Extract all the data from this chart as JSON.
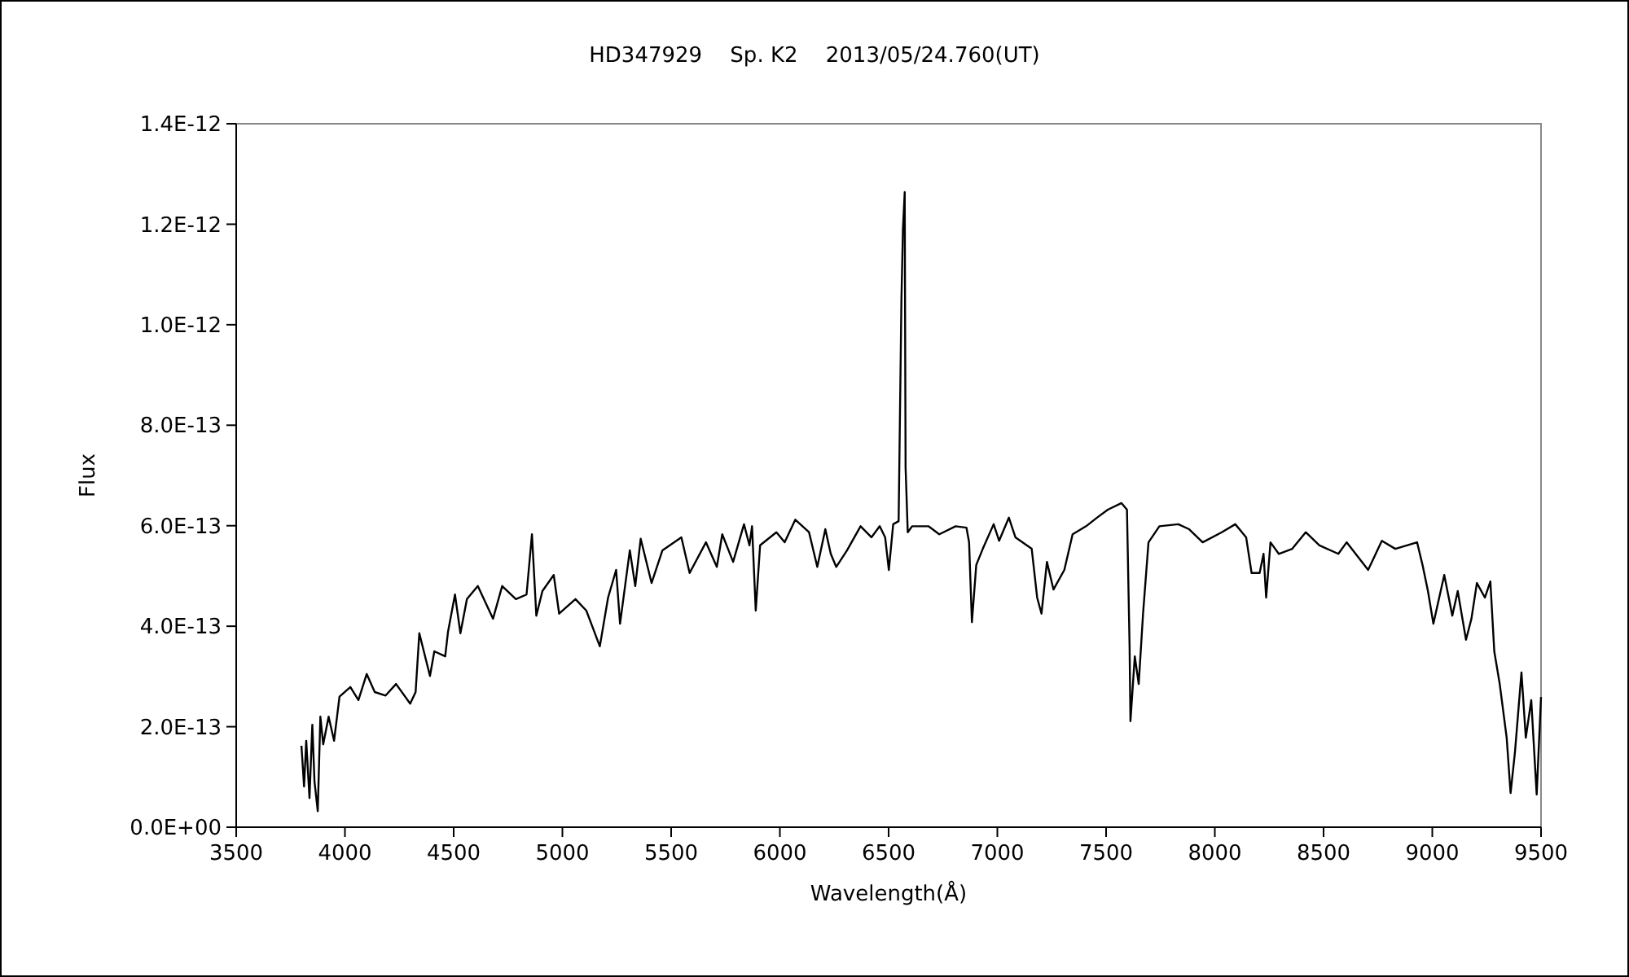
{
  "chart_data": {
    "type": "line",
    "title": "HD347929　 Sp. K2　 2013/05/24.760(UT)",
    "xlabel": "Wavelength(Å)",
    "ylabel": "Flux",
    "x": [
      3800,
      3812,
      3822,
      3837,
      3850,
      3860,
      3875,
      3887,
      3900,
      3925,
      3950,
      3975,
      4025,
      4062,
      4100,
      4137,
      4187,
      4235,
      4300,
      4325,
      4342,
      4391,
      4411,
      4461,
      4474,
      4506,
      4531,
      4561,
      4611,
      4681,
      4723,
      4786,
      4835,
      4860,
      4880,
      4908,
      4960,
      4985,
      5060,
      5110,
      5172,
      5210,
      5247,
      5265,
      5310,
      5335,
      5360,
      5410,
      5460,
      5547,
      5585,
      5660,
      5710,
      5735,
      5785,
      5835,
      5860,
      5872,
      5889,
      5909,
      5984,
      6022,
      6071,
      6134,
      6172,
      6209,
      6234,
      6259,
      6309,
      6371,
      6421,
      6459,
      6484,
      6501,
      6521,
      6546,
      6559,
      6566,
      6574,
      6578,
      6588,
      6608,
      6683,
      6733,
      6808,
      6858,
      6870,
      6883,
      6903,
      6933,
      6983,
      7008,
      7053,
      7083,
      7158,
      7183,
      7203,
      7228,
      7258,
      7308,
      7346,
      7408,
      7458,
      7508,
      7571,
      7596,
      7608,
      7612,
      7632,
      7650,
      7670,
      7695,
      7745,
      7832,
      7882,
      7944,
      8032,
      8094,
      8144,
      8169,
      8206,
      8224,
      8236,
      8256,
      8294,
      8356,
      8418,
      8481,
      8568,
      8606,
      8705,
      8768,
      8830,
      8930,
      8955,
      8980,
      9005,
      9055,
      9092,
      9117,
      9155,
      9180,
      9205,
      9242,
      9267,
      9285,
      9310,
      9342,
      9360,
      9380,
      9410,
      9430,
      9455,
      9480,
      9500
    ],
    "series": [
      {
        "color": "#000000",
        "values": [
          1.62e-13,
          8.1e-14,
          1.72e-13,
          5.8e-14,
          2.04e-13,
          9.1e-14,
          3.2e-14,
          2.2e-13,
          1.65e-13,
          2.2e-13,
          1.72e-13,
          2.6e-13,
          2.79e-13,
          2.53e-13,
          3.05e-13,
          2.69e-13,
          2.62e-13,
          2.85e-13,
          2.46e-13,
          2.69e-13,
          3.86e-13,
          3.01e-13,
          3.5e-13,
          3.4e-13,
          3.89e-13,
          4.63e-13,
          3.86e-13,
          4.54e-13,
          4.8e-13,
          4.15e-13,
          4.8e-13,
          4.54e-13,
          4.63e-13,
          5.83e-13,
          4.21e-13,
          4.7e-13,
          5.02e-13,
          4.25e-13,
          4.54e-13,
          4.31e-13,
          3.6e-13,
          4.57e-13,
          5.12e-13,
          4.05e-13,
          5.51e-13,
          4.8e-13,
          5.74e-13,
          4.86e-13,
          5.51e-13,
          5.77e-13,
          5.06e-13,
          5.67e-13,
          5.18e-13,
          5.83e-13,
          5.28e-13,
          6.03e-13,
          5.61e-13,
          5.99e-13,
          4.31e-13,
          5.61e-13,
          5.87e-13,
          5.67e-13,
          6.12e-13,
          5.87e-13,
          5.18e-13,
          5.93e-13,
          5.44e-13,
          5.18e-13,
          5.51e-13,
          5.99e-13,
          5.77e-13,
          5.99e-13,
          5.77e-13,
          5.12e-13,
          6.03e-13,
          6.09e-13,
          1.053e-12,
          1.192e-12,
          1.264e-12,
          7.16e-13,
          5.87e-13,
          5.99e-13,
          5.99e-13,
          5.83e-13,
          5.99e-13,
          5.96e-13,
          5.67e-13,
          4.08e-13,
          5.22e-13,
          5.54e-13,
          6.03e-13,
          5.7e-13,
          6.16e-13,
          5.77e-13,
          5.54e-13,
          4.57e-13,
          4.25e-13,
          5.28e-13,
          4.73e-13,
          5.12e-13,
          5.83e-13,
          5.99e-13,
          6.16e-13,
          6.32e-13,
          6.45e-13,
          6.32e-13,
          3.6e-13,
          2.11e-13,
          3.4e-13,
          2.85e-13,
          4.25e-13,
          5.67e-13,
          5.99e-13,
          6.03e-13,
          5.93e-13,
          5.67e-13,
          5.87e-13,
          6.03e-13,
          5.77e-13,
          5.06e-13,
          5.06e-13,
          5.44e-13,
          4.57e-13,
          5.67e-13,
          5.44e-13,
          5.54e-13,
          5.87e-13,
          5.61e-13,
          5.44e-13,
          5.67e-13,
          5.12e-13,
          5.7e-13,
          5.54e-13,
          5.67e-13,
          5.22e-13,
          4.7e-13,
          4.05e-13,
          5.02e-13,
          4.21e-13,
          4.7e-13,
          3.73e-13,
          4.15e-13,
          4.86e-13,
          4.57e-13,
          4.89e-13,
          3.5e-13,
          2.85e-13,
          1.78e-13,
          6.8e-14,
          1.49e-13,
          3.08e-13,
          1.78e-13,
          2.53e-13,
          6.5e-14,
          2.59e-13
        ]
      }
    ],
    "xlim": [
      3500,
      9500
    ],
    "xticks": [
      3500,
      4000,
      4500,
      5000,
      5500,
      6000,
      6500,
      7000,
      7500,
      8000,
      8500,
      9000,
      9500
    ],
    "ylim": [
      0,
      1.4e-12
    ],
    "yticks": [
      {
        "value": 0,
        "label": "0.0E+00"
      },
      {
        "value": 2e-13,
        "label": "2.0E-13"
      },
      {
        "value": 4e-13,
        "label": "4.0E-13"
      },
      {
        "value": 6e-13,
        "label": "6.0E-13"
      },
      {
        "value": 8e-13,
        "label": "8.0E-13"
      },
      {
        "value": 1e-12,
        "label": "1.0E-12"
      },
      {
        "value": 1.2e-12,
        "label": "1.2E-12"
      },
      {
        "value": 1.4e-12,
        "label": "1.4E-12"
      }
    ],
    "grid": false
  }
}
